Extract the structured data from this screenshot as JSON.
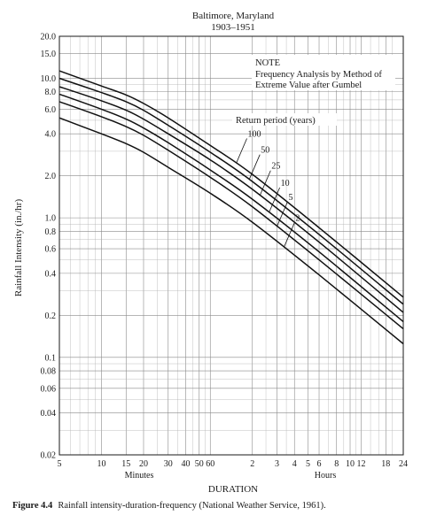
{
  "chart_data": {
    "type": "line",
    "title": "Baltimore, Maryland",
    "subtitle": "1903–1951",
    "xlabel": "DURATION",
    "ylabel": "Rainfall Intensity (in./hr)",
    "x_unit_labels": {
      "minutes": "Minutes",
      "hours": "Hours"
    },
    "x_scale": "log",
    "y_scale": "log",
    "xlim_minutes": [
      5,
      1440
    ],
    "ylim": [
      0.02,
      20
    ],
    "x_ticks": [
      {
        "minutes": 5,
        "label": "5"
      },
      {
        "minutes": 10,
        "label": "10"
      },
      {
        "minutes": 15,
        "label": "15"
      },
      {
        "minutes": 20,
        "label": "20"
      },
      {
        "minutes": 30,
        "label": "30"
      },
      {
        "minutes": 40,
        "label": "40"
      },
      {
        "minutes": 50,
        "label": "50"
      },
      {
        "minutes": 60,
        "label": "60"
      },
      {
        "minutes": 120,
        "label": "2"
      },
      {
        "minutes": 180,
        "label": "3"
      },
      {
        "minutes": 240,
        "label": "4"
      },
      {
        "minutes": 300,
        "label": "5"
      },
      {
        "minutes": 360,
        "label": "6"
      },
      {
        "minutes": 480,
        "label": "8"
      },
      {
        "minutes": 600,
        "label": "10"
      },
      {
        "minutes": 720,
        "label": "12"
      },
      {
        "minutes": 1080,
        "label": "18"
      },
      {
        "minutes": 1440,
        "label": "24"
      }
    ],
    "y_ticks": [
      {
        "value": 20.0,
        "label": "20.0"
      },
      {
        "value": 15.0,
        "label": "15.0"
      },
      {
        "value": 10.0,
        "label": "10.0"
      },
      {
        "value": 8.0,
        "label": "8.0"
      },
      {
        "value": 6.0,
        "label": "6.0"
      },
      {
        "value": 4.0,
        "label": "4.0"
      },
      {
        "value": 2.0,
        "label": "2.0"
      },
      {
        "value": 1.0,
        "label": "1.0"
      },
      {
        "value": 0.8,
        "label": "0.8"
      },
      {
        "value": 0.6,
        "label": "0.6"
      },
      {
        "value": 0.4,
        "label": "0.4"
      },
      {
        "value": 0.2,
        "label": "0.2"
      },
      {
        "value": 0.1,
        "label": "0.1"
      },
      {
        "value": 0.08,
        "label": "0.08"
      },
      {
        "value": 0.06,
        "label": "0.06"
      },
      {
        "value": 0.04,
        "label": "0.04"
      },
      {
        "value": 0.02,
        "label": "0.02"
      }
    ],
    "x_minor_minutes": [
      6,
      7,
      8,
      9,
      25,
      35,
      45,
      55,
      150,
      210,
      420,
      540,
      660,
      840,
      960,
      1200
    ],
    "y_minor": [
      0.03,
      0.05,
      0.07,
      0.09,
      0.3,
      0.5,
      0.7,
      0.9,
      3.0,
      5.0,
      7.0,
      9.0
    ],
    "grid": true,
    "note": {
      "heading": "NOTE",
      "lines": [
        "Frequency Analysis by Method of",
        "Extreme Value after Gumbel"
      ]
    },
    "return_period_label": "Return period (years)",
    "series": [
      {
        "name": "100",
        "x_minutes": [
          5,
          10,
          15,
          20,
          30,
          60,
          120,
          360,
          1440
        ],
        "values": [
          11.3,
          8.8,
          7.6,
          6.6,
          5.2,
          3.3,
          2.05,
          0.85,
          0.27
        ]
      },
      {
        "name": "50",
        "x_minutes": [
          5,
          10,
          15,
          20,
          30,
          60,
          120,
          360,
          1440
        ],
        "values": [
          10.0,
          7.9,
          6.8,
          5.9,
          4.6,
          2.95,
          1.82,
          0.76,
          0.24
        ]
      },
      {
        "name": "25",
        "x_minutes": [
          5,
          10,
          15,
          20,
          30,
          60,
          120,
          360,
          1440
        ],
        "values": [
          8.7,
          6.9,
          5.9,
          5.1,
          4.0,
          2.6,
          1.6,
          0.67,
          0.21
        ]
      },
      {
        "name": "10",
        "x_minutes": [
          5,
          10,
          15,
          20,
          30,
          60,
          120,
          360,
          1440
        ],
        "values": [
          7.7,
          6.0,
          5.1,
          4.4,
          3.45,
          2.2,
          1.36,
          0.57,
          0.18
        ]
      },
      {
        "name": "5",
        "x_minutes": [
          5,
          10,
          15,
          20,
          30,
          60,
          120,
          360,
          1440
        ],
        "values": [
          6.8,
          5.3,
          4.5,
          3.9,
          3.05,
          1.95,
          1.2,
          0.5,
          0.16
        ]
      },
      {
        "name": "2",
        "x_minutes": [
          5,
          10,
          15,
          20,
          30,
          60,
          120,
          360,
          1440
        ],
        "values": [
          5.2,
          4.0,
          3.4,
          2.95,
          2.3,
          1.5,
          0.93,
          0.39,
          0.125
        ]
      }
    ]
  },
  "caption": {
    "label": "Figure 4.4",
    "text": "Rainfall intensity-duration-frequency (National Weather Service, 1961)."
  }
}
